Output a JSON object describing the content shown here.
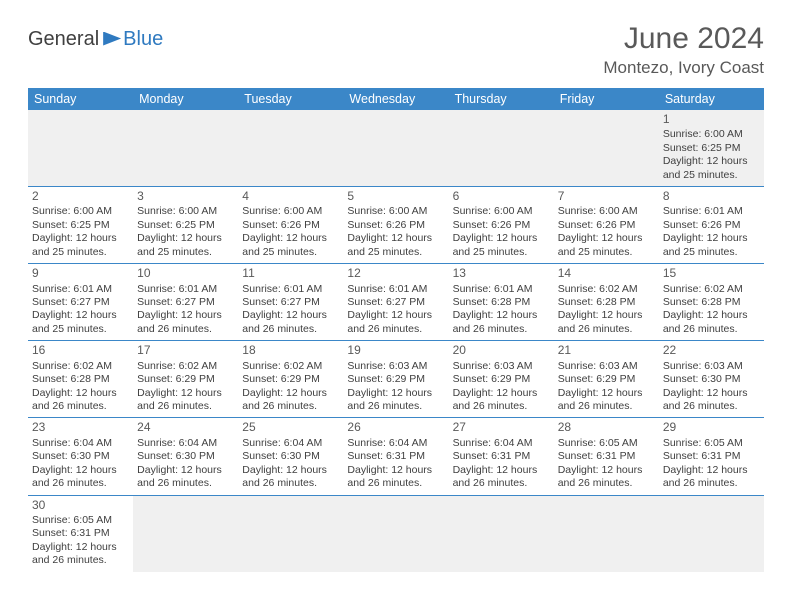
{
  "brand": {
    "part1": "General",
    "part2": "Blue"
  },
  "title": "June 2024",
  "location": "Montezo, Ivory Coast",
  "colors": {
    "header_bg": "#3b87c8",
    "header_text": "#ffffff",
    "brand_accent": "#2f7ac0",
    "text": "#404040",
    "muted_bg": "#f0f0f0",
    "rule": "#3b87c8"
  },
  "weekdays": [
    "Sunday",
    "Monday",
    "Tuesday",
    "Wednesday",
    "Thursday",
    "Friday",
    "Saturday"
  ],
  "days": {
    "1": {
      "sunrise": "6:00 AM",
      "sunset": "6:25 PM",
      "daylight": "12 hours and 25 minutes."
    },
    "2": {
      "sunrise": "6:00 AM",
      "sunset": "6:25 PM",
      "daylight": "12 hours and 25 minutes."
    },
    "3": {
      "sunrise": "6:00 AM",
      "sunset": "6:25 PM",
      "daylight": "12 hours and 25 minutes."
    },
    "4": {
      "sunrise": "6:00 AM",
      "sunset": "6:26 PM",
      "daylight": "12 hours and 25 minutes."
    },
    "5": {
      "sunrise": "6:00 AM",
      "sunset": "6:26 PM",
      "daylight": "12 hours and 25 minutes."
    },
    "6": {
      "sunrise": "6:00 AM",
      "sunset": "6:26 PM",
      "daylight": "12 hours and 25 minutes."
    },
    "7": {
      "sunrise": "6:00 AM",
      "sunset": "6:26 PM",
      "daylight": "12 hours and 25 minutes."
    },
    "8": {
      "sunrise": "6:01 AM",
      "sunset": "6:26 PM",
      "daylight": "12 hours and 25 minutes."
    },
    "9": {
      "sunrise": "6:01 AM",
      "sunset": "6:27 PM",
      "daylight": "12 hours and 25 minutes."
    },
    "10": {
      "sunrise": "6:01 AM",
      "sunset": "6:27 PM",
      "daylight": "12 hours and 26 minutes."
    },
    "11": {
      "sunrise": "6:01 AM",
      "sunset": "6:27 PM",
      "daylight": "12 hours and 26 minutes."
    },
    "12": {
      "sunrise": "6:01 AM",
      "sunset": "6:27 PM",
      "daylight": "12 hours and 26 minutes."
    },
    "13": {
      "sunrise": "6:01 AM",
      "sunset": "6:28 PM",
      "daylight": "12 hours and 26 minutes."
    },
    "14": {
      "sunrise": "6:02 AM",
      "sunset": "6:28 PM",
      "daylight": "12 hours and 26 minutes."
    },
    "15": {
      "sunrise": "6:02 AM",
      "sunset": "6:28 PM",
      "daylight": "12 hours and 26 minutes."
    },
    "16": {
      "sunrise": "6:02 AM",
      "sunset": "6:28 PM",
      "daylight": "12 hours and 26 minutes."
    },
    "17": {
      "sunrise": "6:02 AM",
      "sunset": "6:29 PM",
      "daylight": "12 hours and 26 minutes."
    },
    "18": {
      "sunrise": "6:02 AM",
      "sunset": "6:29 PM",
      "daylight": "12 hours and 26 minutes."
    },
    "19": {
      "sunrise": "6:03 AM",
      "sunset": "6:29 PM",
      "daylight": "12 hours and 26 minutes."
    },
    "20": {
      "sunrise": "6:03 AM",
      "sunset": "6:29 PM",
      "daylight": "12 hours and 26 minutes."
    },
    "21": {
      "sunrise": "6:03 AM",
      "sunset": "6:29 PM",
      "daylight": "12 hours and 26 minutes."
    },
    "22": {
      "sunrise": "6:03 AM",
      "sunset": "6:30 PM",
      "daylight": "12 hours and 26 minutes."
    },
    "23": {
      "sunrise": "6:04 AM",
      "sunset": "6:30 PM",
      "daylight": "12 hours and 26 minutes."
    },
    "24": {
      "sunrise": "6:04 AM",
      "sunset": "6:30 PM",
      "daylight": "12 hours and 26 minutes."
    },
    "25": {
      "sunrise": "6:04 AM",
      "sunset": "6:30 PM",
      "daylight": "12 hours and 26 minutes."
    },
    "26": {
      "sunrise": "6:04 AM",
      "sunset": "6:31 PM",
      "daylight": "12 hours and 26 minutes."
    },
    "27": {
      "sunrise": "6:04 AM",
      "sunset": "6:31 PM",
      "daylight": "12 hours and 26 minutes."
    },
    "28": {
      "sunrise": "6:05 AM",
      "sunset": "6:31 PM",
      "daylight": "12 hours and 26 minutes."
    },
    "29": {
      "sunrise": "6:05 AM",
      "sunset": "6:31 PM",
      "daylight": "12 hours and 26 minutes."
    },
    "30": {
      "sunrise": "6:05 AM",
      "sunset": "6:31 PM",
      "daylight": "12 hours and 26 minutes."
    }
  },
  "labels": {
    "sunrise": "Sunrise:",
    "sunset": "Sunset:",
    "daylight": "Daylight:"
  },
  "layout": {
    "first_weekday_index": 6,
    "num_days": 30,
    "columns": 7
  }
}
